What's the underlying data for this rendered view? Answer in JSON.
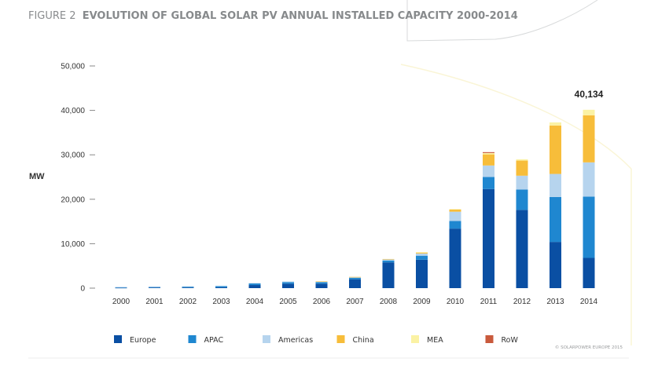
{
  "figure": {
    "label": "FIGURE 2",
    "title": "EVOLUTION OF GLOBAL SOLAR PV ANNUAL INSTALLED CAPACITY 2000-2014"
  },
  "copyright": "© SOLARPOWER EUROPE 2015",
  "colors": {
    "title": "#8a8c8e",
    "title_bold": "#878a8c",
    "text": "#333333",
    "axis_tick": "#888888",
    "background_line": "#d8dadb",
    "background_glow": "#faf5d6",
    "rule": "#ececec"
  },
  "chart_data": {
    "type": "bar",
    "stacked": true,
    "ylabel": "MW",
    "xlabel": "",
    "ylim": [
      0,
      50000
    ],
    "yticks": [
      0,
      10000,
      20000,
      30000,
      40000,
      50000
    ],
    "ytick_labels": [
      "0",
      "10,000",
      "20,000",
      "30,000",
      "40,000",
      "50,000"
    ],
    "grid": false,
    "legend_position": "bottom",
    "categories": [
      "2000",
      "2001",
      "2002",
      "2003",
      "2004",
      "2005",
      "2006",
      "2007",
      "2008",
      "2009",
      "2010",
      "2011",
      "2012",
      "2013",
      "2014"
    ],
    "series": [
      {
        "name": "Europe",
        "color": "#0a4fa3",
        "values": [
          75,
          130,
          150,
          200,
          700,
          1000,
          1000,
          2000,
          5800,
          6400,
          13400,
          22300,
          17600,
          10400,
          6800
        ]
      },
      {
        "name": "APAC",
        "color": "#1f87d0",
        "values": [
          150,
          170,
          200,
          250,
          350,
          350,
          350,
          300,
          400,
          900,
          1700,
          2700,
          4600,
          10100,
          13800
        ]
      },
      {
        "name": "Americas",
        "color": "#b6d4ee",
        "values": [
          20,
          30,
          50,
          80,
          100,
          150,
          150,
          200,
          300,
          500,
          2100,
          2600,
          3100,
          5200,
          7700
        ]
      },
      {
        "name": "China",
        "color": "#f7bd3a",
        "values": [
          0,
          0,
          0,
          0,
          0,
          0,
          10,
          20,
          50,
          200,
          500,
          2500,
          3400,
          10900,
          10600
        ]
      },
      {
        "name": "MEA",
        "color": "#fbf2a4",
        "values": [
          0,
          0,
          0,
          0,
          0,
          0,
          0,
          0,
          0,
          100,
          100,
          300,
          300,
          700,
          1234
        ]
      },
      {
        "name": "RoW",
        "color": "#c95a3c",
        "values": [
          0,
          0,
          0,
          0,
          0,
          0,
          0,
          0,
          0,
          0,
          0,
          200,
          0,
          0,
          0
        ]
      }
    ],
    "annotations": [
      {
        "category": "2014",
        "text": "40,134",
        "value": 40134
      }
    ]
  }
}
